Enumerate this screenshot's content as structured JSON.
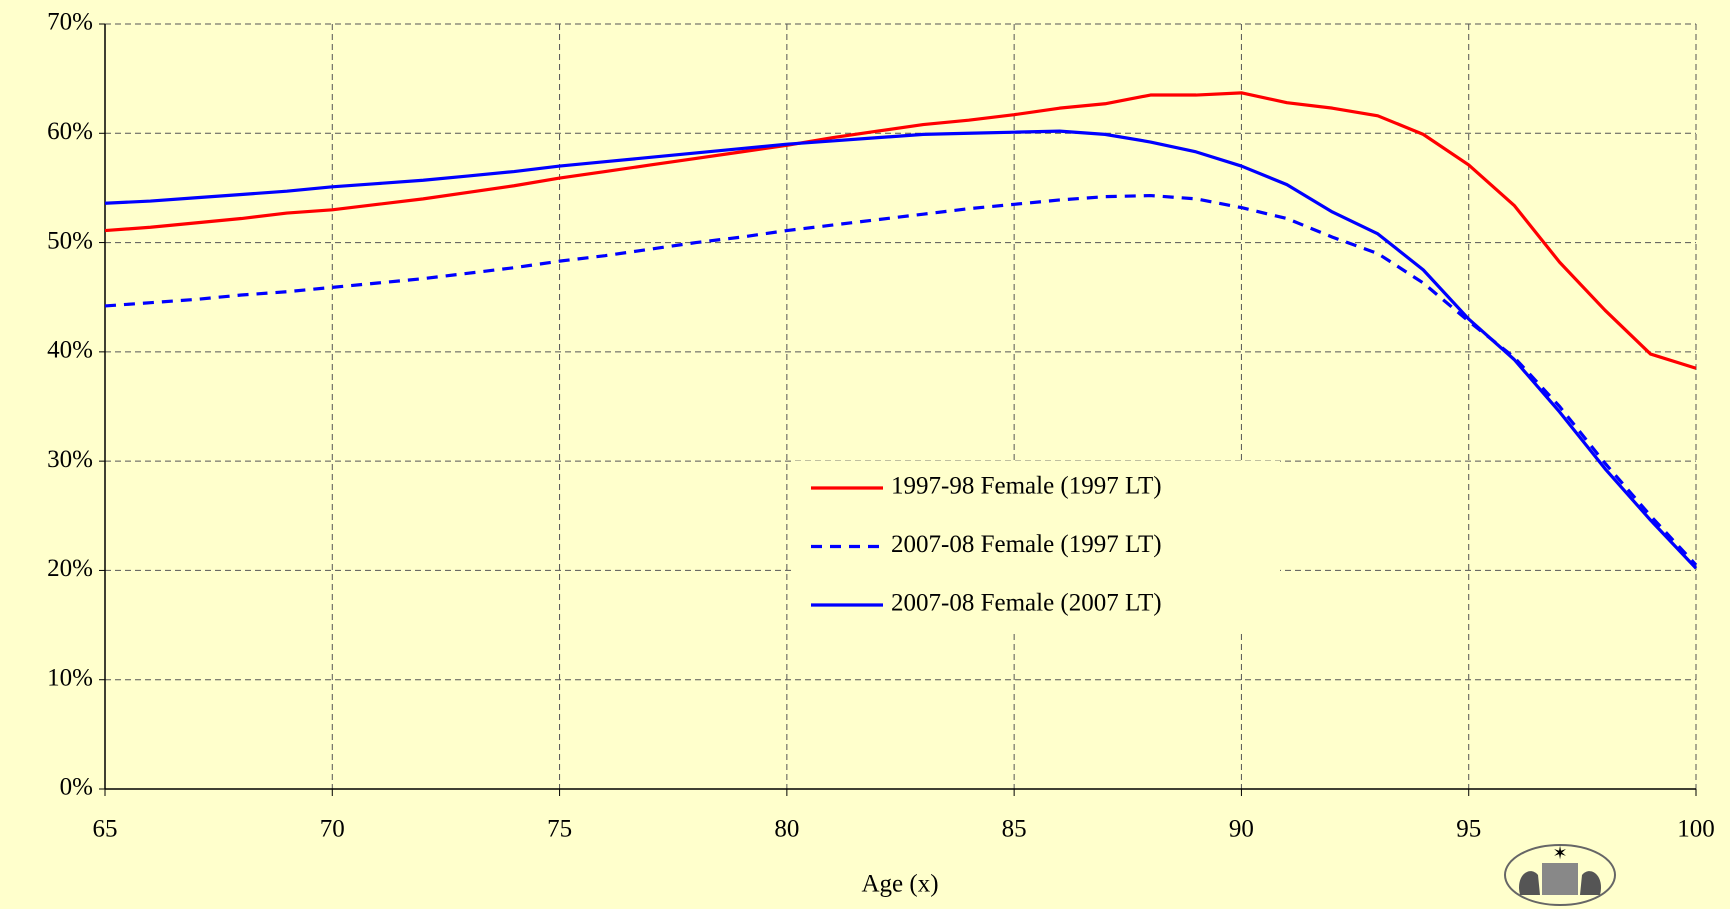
{
  "chart_data": {
    "type": "line",
    "x_label": "Age (x)",
    "x": [
      65,
      66,
      67,
      68,
      69,
      70,
      71,
      72,
      73,
      74,
      75,
      76,
      77,
      78,
      79,
      80,
      81,
      82,
      83,
      84,
      85,
      86,
      87,
      88,
      89,
      90,
      91,
      92,
      93,
      94,
      95,
      96,
      97,
      98,
      99,
      100
    ],
    "series": [
      {
        "name": "1997-98 Female (1997 LT)",
        "color": "#ff0000",
        "dash": false,
        "values": [
          51.1,
          51.4,
          51.8,
          52.2,
          52.7,
          53.0,
          53.5,
          54.0,
          54.6,
          55.2,
          55.9,
          56.5,
          57.1,
          57.7,
          58.3,
          58.9,
          59.6,
          60.2,
          60.8,
          61.2,
          61.7,
          62.3,
          62.7,
          63.5,
          63.5,
          63.7,
          62.8,
          62.3,
          61.6,
          59.9,
          57.1,
          53.4,
          48.2,
          43.8,
          39.8,
          38.5
        ]
      },
      {
        "name": "2007-08 Female (1997 LT)",
        "color": "#0000ff",
        "dash": true,
        "values": [
          44.2,
          44.5,
          44.8,
          45.2,
          45.5,
          45.9,
          46.3,
          46.7,
          47.2,
          47.7,
          48.3,
          48.8,
          49.4,
          50.0,
          50.5,
          51.1,
          51.6,
          52.1,
          52.6,
          53.1,
          53.5,
          53.9,
          54.2,
          54.3,
          54.0,
          53.2,
          52.2,
          50.5,
          49.0,
          46.3,
          42.8,
          39.5,
          35.0,
          29.8,
          25.0,
          20.5
        ]
      },
      {
        "name": "2007-08 Female (2007 LT)",
        "color": "#0000ff",
        "dash": false,
        "values": [
          53.6,
          53.8,
          54.1,
          54.4,
          54.7,
          55.1,
          55.4,
          55.7,
          56.1,
          56.5,
          57.0,
          57.4,
          57.8,
          58.2,
          58.6,
          59.0,
          59.3,
          59.6,
          59.9,
          60.0,
          60.1,
          60.2,
          59.9,
          59.2,
          58.3,
          57.0,
          55.3,
          52.8,
          50.8,
          47.5,
          43.0,
          39.3,
          34.5,
          29.3,
          24.6,
          20.2
        ]
      }
    ],
    "xlim": [
      65,
      100
    ],
    "xticks": [
      65,
      70,
      75,
      80,
      85,
      90,
      95,
      100
    ],
    "ylim": [
      0,
      70
    ],
    "yticks": [
      {
        "value": 0,
        "label": "0%"
      },
      {
        "value": 10,
        "label": "10%"
      },
      {
        "value": 20,
        "label": "20%"
      },
      {
        "value": 30,
        "label": "30%"
      },
      {
        "value": 40,
        "label": "40%"
      },
      {
        "value": 50,
        "label": "50%"
      },
      {
        "value": 60,
        "label": "60%"
      },
      {
        "value": 70,
        "label": "70%"
      }
    ],
    "grid": true,
    "legend": "center-right"
  }
}
